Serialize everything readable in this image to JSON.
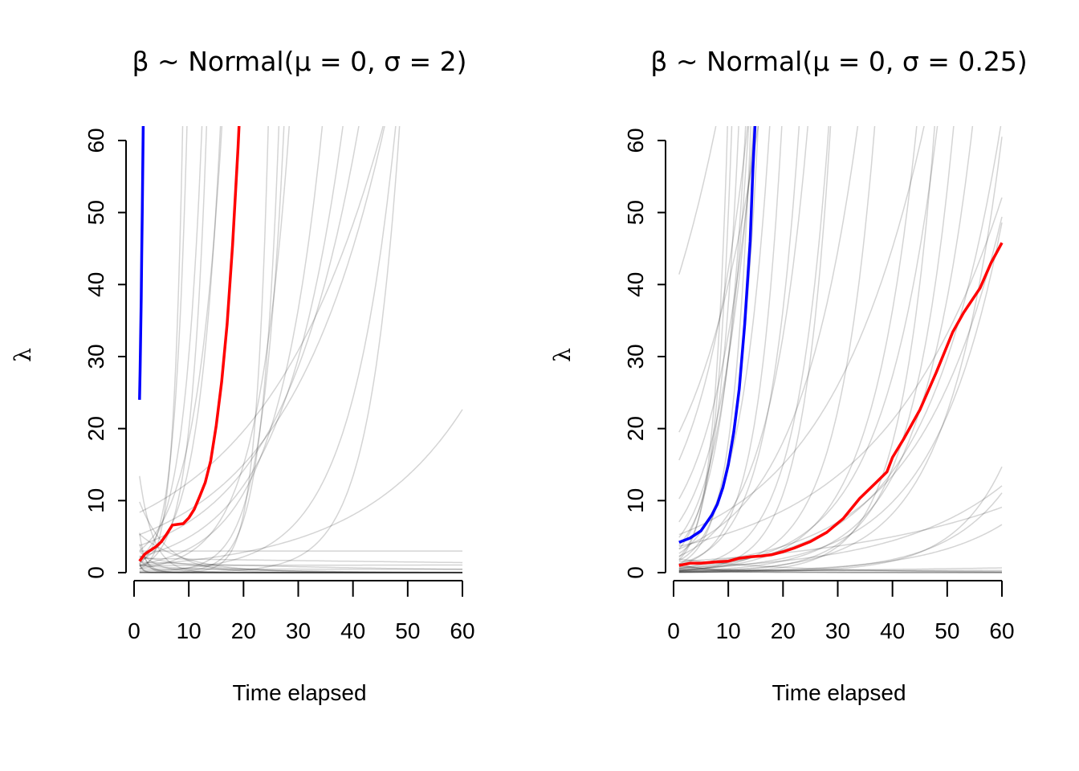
{
  "chart_data": [
    {
      "type": "line",
      "title": "β ~ Normal(μ = 0,  σ = 2)",
      "xlabel": "Time elapsed",
      "ylabel": "λ",
      "xlim": [
        0,
        60
      ],
      "ylim": [
        0,
        62
      ],
      "xticks": [
        0,
        10,
        20,
        30,
        40,
        50,
        60
      ],
      "yticks": [
        0,
        10,
        20,
        30,
        40,
        50,
        60
      ],
      "grid": false,
      "colors": {
        "draws": "#000000",
        "blue": "#0000FF",
        "red": "#FF0000"
      },
      "prior_draws": [
        [
          0.5,
          0.17
        ],
        [
          1.0,
          0.12
        ],
        [
          2.0,
          0.09
        ],
        [
          3.5,
          0.07
        ],
        [
          5.0,
          0.055
        ],
        [
          8.0,
          0.045
        ],
        [
          1.5,
          0.3
        ],
        [
          0.3,
          0.6
        ],
        [
          0.8,
          0.45
        ],
        [
          1.2,
          0.25
        ],
        [
          0.6,
          0.35
        ],
        [
          2.5,
          0.2
        ],
        [
          0.05,
          0.26
        ],
        [
          0.2,
          0.12
        ],
        [
          0.01,
          0.33
        ],
        [
          1.0,
          -0.05
        ],
        [
          2.5,
          -0.08
        ],
        [
          6.0,
          -0.12
        ],
        [
          12.0,
          -0.2
        ],
        [
          4.0,
          -0.3
        ],
        [
          20.0,
          -0.4
        ],
        [
          1.5,
          -0.02
        ],
        [
          2.0,
          -0.006
        ],
        [
          1.0,
          0.052
        ],
        [
          3.0,
          -0.5
        ],
        [
          8.0,
          -0.7
        ],
        [
          15.0,
          -1.0
        ],
        [
          5.0,
          -1.5
        ],
        [
          10.0,
          -2.0
        ],
        [
          2.0,
          -3.0
        ],
        [
          1.0,
          0.001
        ],
        [
          0.5,
          -0.001
        ],
        [
          3.0,
          0.0
        ],
        [
          0.001,
          0.45
        ],
        [
          0.01,
          0.18
        ]
      ],
      "series": [
        {
          "color": "#0000FF",
          "x": [
            1,
            1.1,
            1.2,
            1.3,
            1.4,
            1.5,
            1.6,
            1.7
          ],
          "y": [
            24,
            28,
            33,
            38,
            44,
            50,
            57,
            64
          ]
        },
        {
          "color": "#FF0000",
          "x": [
            1,
            2,
            3,
            4,
            5,
            6,
            7,
            8,
            9,
            10,
            11,
            12,
            13,
            14,
            15,
            16,
            17,
            18,
            19,
            19.3
          ],
          "y": [
            1.6,
            2.6,
            3.1,
            3.6,
            4.3,
            5.4,
            6.6,
            6.7,
            6.8,
            7.6,
            8.8,
            10.6,
            12.5,
            15.5,
            20.4,
            26.5,
            34.5,
            45.5,
            59.0,
            64.0
          ]
        }
      ]
    },
    {
      "type": "line",
      "title": "β ~ Normal(μ = 0,  σ = 0.25)",
      "xlabel": "Time elapsed",
      "ylabel": "λ",
      "xlim": [
        0,
        60
      ],
      "ylim": [
        0,
        62
      ],
      "xticks": [
        0,
        10,
        20,
        30,
        40,
        50,
        60
      ],
      "yticks": [
        0,
        10,
        20,
        30,
        40,
        50,
        60
      ],
      "grid": false,
      "colors": {
        "draws": "#000000",
        "blue": "#0000FF",
        "red": "#FF0000"
      },
      "prior_draws": [
        [
          39.0,
          0.06
        ],
        [
          18.0,
          0.08
        ],
        [
          14.0,
          0.11
        ],
        [
          9.0,
          0.13
        ],
        [
          6.0,
          0.16
        ],
        [
          4.0,
          0.2
        ],
        [
          3.0,
          0.23
        ],
        [
          2.5,
          0.27
        ],
        [
          1.5,
          0.35
        ],
        [
          1.2,
          0.4
        ],
        [
          2.0,
          0.14
        ],
        [
          1.0,
          0.18
        ],
        [
          0.8,
          0.22
        ],
        [
          3.0,
          0.09
        ],
        [
          5.0,
          0.055
        ],
        [
          0.3,
          0.12
        ],
        [
          0.2,
          0.105
        ],
        [
          0.5,
          0.1
        ],
        [
          1.0,
          0.065
        ],
        [
          0.7,
          0.075
        ],
        [
          0.4,
          0.08
        ],
        [
          0.15,
          0.1
        ],
        [
          0.6,
          0.05
        ],
        [
          1.5,
          0.03
        ],
        [
          0.1,
          0.07
        ],
        [
          0.05,
          0.09
        ],
        [
          0.02,
          0.11
        ],
        [
          3.5,
          0.045
        ],
        [
          0.9,
          0.3
        ],
        [
          2.2,
          0.19
        ],
        [
          1.3,
          0.25
        ],
        [
          0.25,
          0.15
        ],
        [
          0.08,
          0.13
        ],
        [
          0.5,
          0.17
        ],
        [
          0.03,
          0.16
        ],
        [
          0.2,
          0.2
        ],
        [
          2.0,
          -0.05
        ],
        [
          1.0,
          -0.1
        ],
        [
          0.5,
          -0.02
        ],
        [
          0.3,
          0.0
        ],
        [
          1.5,
          -0.2
        ],
        [
          0.2,
          0.02
        ],
        [
          0.1,
          -0.03
        ]
      ],
      "series": [
        {
          "color": "#0000FF",
          "x": [
            1,
            3,
            5,
            7,
            8,
            9,
            10,
            11,
            12,
            13,
            14,
            14.5,
            15
          ],
          "y": [
            4.2,
            4.8,
            5.8,
            8.0,
            9.5,
            11.8,
            15.0,
            19.5,
            25.5,
            34.5,
            46.0,
            56.0,
            64.0
          ]
        },
        {
          "color": "#FF0000",
          "x": [
            1,
            3,
            5,
            8,
            10,
            12,
            14,
            16,
            18,
            20,
            22,
            25,
            28,
            31,
            34,
            37,
            39,
            40,
            42,
            45,
            48,
            51,
            53,
            56,
            58,
            60
          ],
          "y": [
            1.0,
            1.3,
            1.3,
            1.5,
            1.6,
            2.0,
            2.2,
            2.3,
            2.5,
            2.9,
            3.4,
            4.3,
            5.6,
            7.5,
            10.3,
            12.5,
            14.0,
            16.0,
            18.5,
            22.6,
            27.8,
            33.4,
            36.1,
            39.5,
            43.0,
            45.8
          ]
        }
      ]
    }
  ]
}
